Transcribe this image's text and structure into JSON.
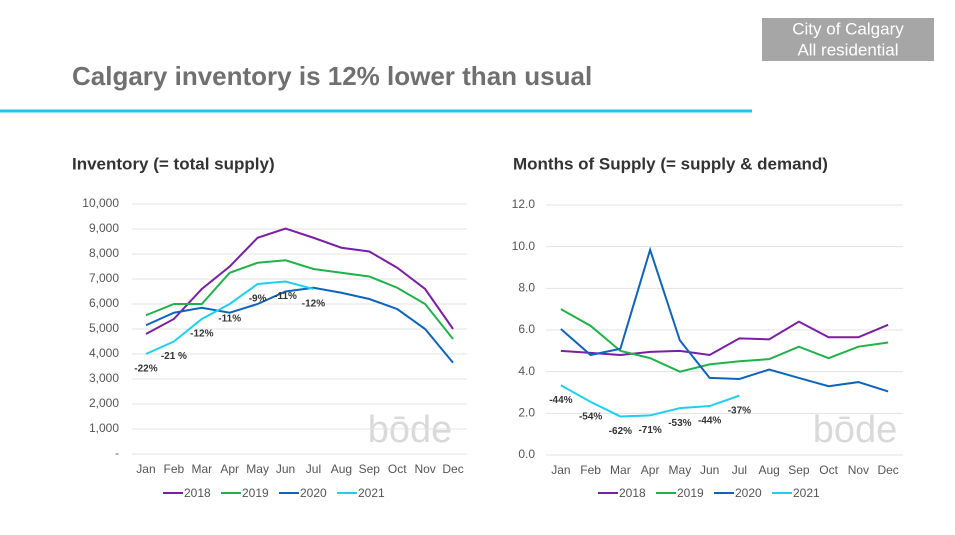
{
  "header": {
    "title": "Calgary inventory is 12% lower than usual",
    "badge": [
      "City of Calgary",
      "All residential"
    ],
    "logo": "bōde"
  },
  "chart_data": [
    {
      "type": "line",
      "title": "Inventory (= total supply)",
      "categories": [
        "Jan",
        "Feb",
        "Mar",
        "Apr",
        "May",
        "Jun",
        "Jul",
        "Aug",
        "Sep",
        "Oct",
        "Nov",
        "Dec"
      ],
      "series": [
        {
          "name": "2018",
          "color": "#7b1fa2",
          "values": [
            4800,
            5400,
            6600,
            7500,
            8650,
            9020,
            8650,
            8250,
            8100,
            7450,
            6600,
            5000
          ]
        },
        {
          "name": "2019",
          "color": "#20b24a",
          "values": [
            5550,
            6000,
            6000,
            7250,
            7650,
            7750,
            7400,
            7250,
            7100,
            6650,
            6000,
            4600
          ]
        },
        {
          "name": "2020",
          "color": "#0f64b9",
          "values": [
            5150,
            5650,
            5850,
            5650,
            6000,
            6500,
            6650,
            6450,
            6200,
            5800,
            5000,
            3650
          ]
        },
        {
          "name": "2021",
          "color": "#1fd0ee",
          "values": [
            4000,
            4500,
            5400,
            6000,
            6800,
            6900,
            6600,
            null,
            null,
            null,
            null,
            null
          ]
        }
      ],
      "annotations": [
        {
          "x": "Jan",
          "text": "-22%"
        },
        {
          "x": "Feb",
          "text": "-21 %"
        },
        {
          "x": "Mar",
          "text": "-12%"
        },
        {
          "x": "Apr",
          "text": "-11%"
        },
        {
          "x": "May",
          "text": "-9%"
        },
        {
          "x": "Jun",
          "text": "-11%"
        },
        {
          "x": "Jul",
          "text": "-12%"
        }
      ],
      "ylim": [
        0,
        10000
      ],
      "yticks": [
        {
          "value": 0,
          "label": "-"
        },
        {
          "value": 1000,
          "label": "1,000"
        },
        {
          "value": 2000,
          "label": "2,000"
        },
        {
          "value": 3000,
          "label": "3,000"
        },
        {
          "value": 4000,
          "label": "4,000"
        },
        {
          "value": 5000,
          "label": "5,000"
        },
        {
          "value": 6000,
          "label": "6,000"
        },
        {
          "value": 7000,
          "label": "7,000"
        },
        {
          "value": 8000,
          "label": "8,000"
        },
        {
          "value": 9000,
          "label": "9,000"
        },
        {
          "value": 10000,
          "label": "10,000"
        }
      ],
      "grid": true
    },
    {
      "type": "line",
      "title": "Months of Supply (= supply & demand)",
      "categories": [
        "Jan",
        "Feb",
        "Mar",
        "Apr",
        "May",
        "Jun",
        "Jul",
        "Aug",
        "Sep",
        "Oct",
        "Nov",
        "Dec"
      ],
      "series": [
        {
          "name": "2018",
          "color": "#7b1fa2",
          "values": [
            5.0,
            4.9,
            4.8,
            4.95,
            5.0,
            4.8,
            5.6,
            5.55,
            6.4,
            5.65,
            5.65,
            6.25
          ]
        },
        {
          "name": "2019",
          "color": "#20b24a",
          "values": [
            7.0,
            6.2,
            5.0,
            4.65,
            4.0,
            4.35,
            4.5,
            4.6,
            5.2,
            4.65,
            5.2,
            5.4
          ]
        },
        {
          "name": "2020",
          "color": "#0f64b9",
          "values": [
            6.05,
            4.8,
            5.1,
            9.85,
            5.5,
            3.7,
            3.65,
            4.1,
            3.7,
            3.3,
            3.5,
            3.05
          ]
        },
        {
          "name": "2021",
          "color": "#1fd0ee",
          "values": [
            3.35,
            2.55,
            1.85,
            1.9,
            2.25,
            2.35,
            2.85,
            null,
            null,
            null,
            null,
            null
          ]
        }
      ],
      "annotations": [
        {
          "x": "Jan",
          "text": "-44%"
        },
        {
          "x": "Feb",
          "text": "-54%"
        },
        {
          "x": "Mar",
          "text": "-62%"
        },
        {
          "x": "Apr",
          "text": "-71%"
        },
        {
          "x": "May",
          "text": "-53%"
        },
        {
          "x": "Jun",
          "text": "-44%"
        },
        {
          "x": "Jul",
          "text": "-37%"
        }
      ],
      "ylim": [
        0,
        12
      ],
      "yticks": [
        {
          "value": 0,
          "label": "0.0"
        },
        {
          "value": 2,
          "label": "2.0"
        },
        {
          "value": 4,
          "label": "4.0"
        },
        {
          "value": 6,
          "label": "6.0"
        },
        {
          "value": 8,
          "label": "8.0"
        },
        {
          "value": 10,
          "label": "10.0"
        },
        {
          "value": 12,
          "label": "12.0"
        }
      ],
      "grid": true
    }
  ]
}
